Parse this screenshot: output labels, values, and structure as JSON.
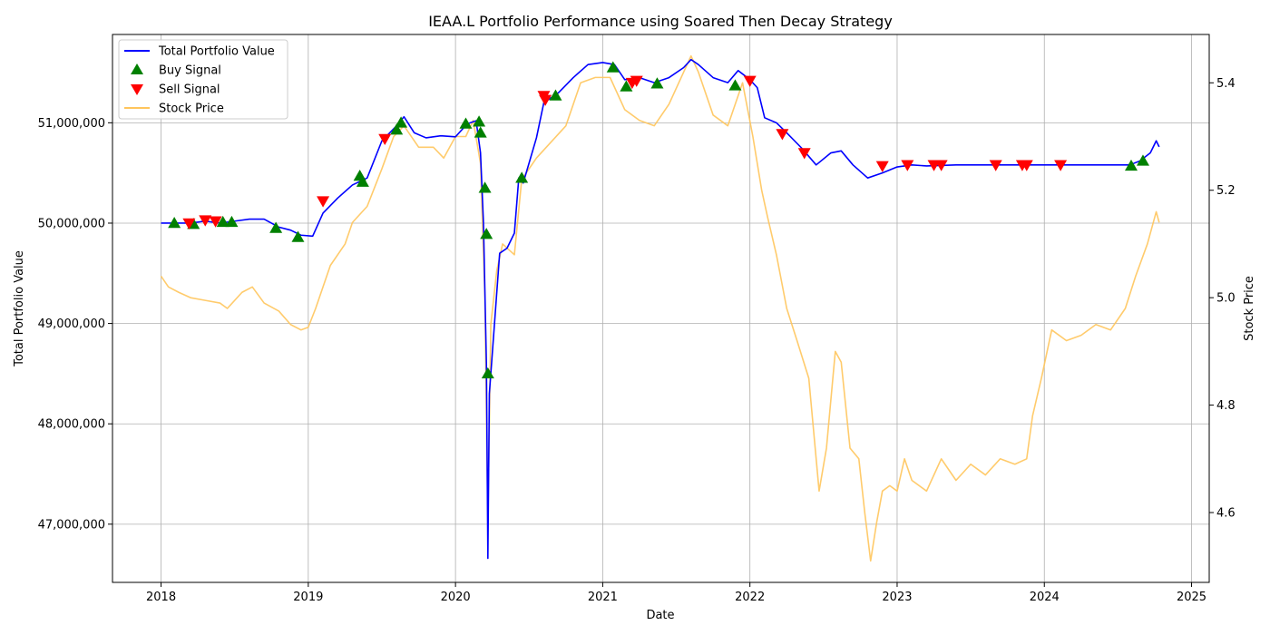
{
  "chart_data": {
    "type": "line",
    "title": "IEAA.L Portfolio Performance using Soared Then Decay Strategy",
    "xlabel": "Date",
    "ylabel": "Total Portfolio Value",
    "ylabel_right": "Stock Price",
    "x_ticks": [
      "2018",
      "2019",
      "2020",
      "2021",
      "2022",
      "2023",
      "2024",
      "2025"
    ],
    "x_range": [
      2017.67,
      2025.12
    ],
    "ylim": [
      46420000,
      51880000
    ],
    "y_ticks": [
      47000000,
      48000000,
      49000000,
      50000000,
      51000000
    ],
    "y_tick_labels": [
      "47,000,000",
      "48,000,000",
      "49,000,000",
      "50,000,000",
      "51,000,000"
    ],
    "ylim_right": [
      4.47,
      5.49
    ],
    "y_ticks_right": [
      4.6,
      4.8,
      5.0,
      5.2,
      5.4
    ],
    "y_tick_labels_right": [
      "4.6",
      "4.8",
      "5.0",
      "5.2",
      "5.4"
    ],
    "grid": true,
    "legend_position": "top-left",
    "legend": [
      {
        "label": "Total Portfolio Value",
        "type": "line",
        "color": "#0000ff"
      },
      {
        "label": "Buy Signal",
        "type": "triangle-up",
        "color": "#008000"
      },
      {
        "label": "Sell Signal",
        "type": "triangle-down",
        "color": "#ff0000"
      },
      {
        "label": "Stock Price",
        "type": "line",
        "color": "#ffc55c"
      }
    ],
    "series": [
      {
        "name": "Total Portfolio Value",
        "axis": "left",
        "color": "#0000ff",
        "points": [
          [
            2018.0,
            50000000
          ],
          [
            2018.1,
            50000000
          ],
          [
            2018.2,
            50000000
          ],
          [
            2018.3,
            50020000
          ],
          [
            2018.4,
            50000000
          ],
          [
            2018.5,
            50020000
          ],
          [
            2018.6,
            50040000
          ],
          [
            2018.7,
            50040000
          ],
          [
            2018.8,
            49960000
          ],
          [
            2018.88,
            49930000
          ],
          [
            2018.95,
            49880000
          ],
          [
            2019.03,
            49870000
          ],
          [
            2019.1,
            50100000
          ],
          [
            2019.2,
            50250000
          ],
          [
            2019.3,
            50380000
          ],
          [
            2019.4,
            50450000
          ],
          [
            2019.5,
            50820000
          ],
          [
            2019.6,
            50970000
          ],
          [
            2019.65,
            51060000
          ],
          [
            2019.72,
            50900000
          ],
          [
            2019.8,
            50850000
          ],
          [
            2019.9,
            50870000
          ],
          [
            2020.0,
            50860000
          ],
          [
            2020.08,
            50990000
          ],
          [
            2020.14,
            51020000
          ],
          [
            2020.17,
            50700000
          ],
          [
            2020.19,
            50000000
          ],
          [
            2020.21,
            48600000
          ],
          [
            2020.22,
            46660000
          ],
          [
            2020.23,
            48300000
          ],
          [
            2020.26,
            48900000
          ],
          [
            2020.3,
            49700000
          ],
          [
            2020.35,
            49750000
          ],
          [
            2020.4,
            49900000
          ],
          [
            2020.43,
            50450000
          ],
          [
            2020.46,
            50400000
          ],
          [
            2020.5,
            50600000
          ],
          [
            2020.55,
            50850000
          ],
          [
            2020.6,
            51200000
          ],
          [
            2020.7,
            51300000
          ],
          [
            2020.8,
            51450000
          ],
          [
            2020.9,
            51580000
          ],
          [
            2021.0,
            51600000
          ],
          [
            2021.08,
            51580000
          ],
          [
            2021.15,
            51430000
          ],
          [
            2021.25,
            51450000
          ],
          [
            2021.35,
            51400000
          ],
          [
            2021.45,
            51450000
          ],
          [
            2021.55,
            51550000
          ],
          [
            2021.6,
            51630000
          ],
          [
            2021.65,
            51580000
          ],
          [
            2021.75,
            51450000
          ],
          [
            2021.85,
            51400000
          ],
          [
            2021.92,
            51520000
          ],
          [
            2022.0,
            51430000
          ],
          [
            2022.05,
            51350000
          ],
          [
            2022.1,
            51050000
          ],
          [
            2022.18,
            51000000
          ],
          [
            2022.25,
            50900000
          ],
          [
            2022.35,
            50750000
          ],
          [
            2022.45,
            50580000
          ],
          [
            2022.55,
            50700000
          ],
          [
            2022.62,
            50720000
          ],
          [
            2022.7,
            50580000
          ],
          [
            2022.8,
            50450000
          ],
          [
            2022.9,
            50500000
          ],
          [
            2023.0,
            50560000
          ],
          [
            2023.1,
            50580000
          ],
          [
            2023.2,
            50570000
          ],
          [
            2023.4,
            50580000
          ],
          [
            2023.6,
            50580000
          ],
          [
            2023.8,
            50580000
          ],
          [
            2024.0,
            50580000
          ],
          [
            2024.2,
            50580000
          ],
          [
            2024.4,
            50580000
          ],
          [
            2024.58,
            50580000
          ],
          [
            2024.65,
            50620000
          ],
          [
            2024.72,
            50700000
          ],
          [
            2024.76,
            50820000
          ],
          [
            2024.78,
            50760000
          ]
        ]
      },
      {
        "name": "Stock Price",
        "axis": "right",
        "color": "#ffc55c",
        "points": [
          [
            2018.0,
            5.04
          ],
          [
            2018.05,
            5.02
          ],
          [
            2018.12,
            5.01
          ],
          [
            2018.2,
            5.0
          ],
          [
            2018.3,
            4.995
          ],
          [
            2018.4,
            4.99
          ],
          [
            2018.45,
            4.98
          ],
          [
            2018.55,
            5.01
          ],
          [
            2018.62,
            5.02
          ],
          [
            2018.7,
            4.99
          ],
          [
            2018.8,
            4.975
          ],
          [
            2018.88,
            4.95
          ],
          [
            2018.95,
            4.94
          ],
          [
            2019.0,
            4.945
          ],
          [
            2019.05,
            4.98
          ],
          [
            2019.15,
            5.06
          ],
          [
            2019.25,
            5.1
          ],
          [
            2019.3,
            5.14
          ],
          [
            2019.4,
            5.17
          ],
          [
            2019.5,
            5.24
          ],
          [
            2019.58,
            5.3
          ],
          [
            2019.65,
            5.32
          ],
          [
            2019.75,
            5.28
          ],
          [
            2019.85,
            5.28
          ],
          [
            2019.92,
            5.26
          ],
          [
            2020.0,
            5.3
          ],
          [
            2020.07,
            5.3
          ],
          [
            2020.12,
            5.33
          ],
          [
            2020.17,
            5.25
          ],
          [
            2020.2,
            5.0
          ],
          [
            2020.22,
            4.58
          ],
          [
            2020.24,
            4.95
          ],
          [
            2020.28,
            5.05
          ],
          [
            2020.32,
            5.1
          ],
          [
            2020.4,
            5.08
          ],
          [
            2020.45,
            5.22
          ],
          [
            2020.55,
            5.26
          ],
          [
            2020.65,
            5.29
          ],
          [
            2020.75,
            5.32
          ],
          [
            2020.85,
            5.4
          ],
          [
            2020.95,
            5.41
          ],
          [
            2021.05,
            5.41
          ],
          [
            2021.15,
            5.35
          ],
          [
            2021.25,
            5.33
          ],
          [
            2021.35,
            5.32
          ],
          [
            2021.45,
            5.36
          ],
          [
            2021.55,
            5.42
          ],
          [
            2021.6,
            5.45
          ],
          [
            2021.65,
            5.42
          ],
          [
            2021.75,
            5.34
          ],
          [
            2021.85,
            5.32
          ],
          [
            2021.95,
            5.4
          ],
          [
            2022.02,
            5.3
          ],
          [
            2022.08,
            5.2
          ],
          [
            2022.12,
            5.15
          ],
          [
            2022.18,
            5.08
          ],
          [
            2022.25,
            4.98
          ],
          [
            2022.32,
            4.92
          ],
          [
            2022.4,
            4.85
          ],
          [
            2022.47,
            4.64
          ],
          [
            2022.52,
            4.72
          ],
          [
            2022.58,
            4.9
          ],
          [
            2022.62,
            4.88
          ],
          [
            2022.68,
            4.72
          ],
          [
            2022.74,
            4.7
          ],
          [
            2022.78,
            4.6
          ],
          [
            2022.82,
            4.51
          ],
          [
            2022.86,
            4.58
          ],
          [
            2022.9,
            4.64
          ],
          [
            2022.95,
            4.65
          ],
          [
            2023.0,
            4.64
          ],
          [
            2023.05,
            4.7
          ],
          [
            2023.1,
            4.66
          ],
          [
            2023.2,
            4.64
          ],
          [
            2023.3,
            4.7
          ],
          [
            2023.4,
            4.66
          ],
          [
            2023.5,
            4.69
          ],
          [
            2023.6,
            4.67
          ],
          [
            2023.7,
            4.7
          ],
          [
            2023.8,
            4.69
          ],
          [
            2023.88,
            4.7
          ],
          [
            2023.92,
            4.78
          ],
          [
            2023.98,
            4.85
          ],
          [
            2024.05,
            4.94
          ],
          [
            2024.15,
            4.92
          ],
          [
            2024.25,
            4.93
          ],
          [
            2024.35,
            4.95
          ],
          [
            2024.45,
            4.94
          ],
          [
            2024.55,
            4.98
          ],
          [
            2024.62,
            5.04
          ],
          [
            2024.7,
            5.1
          ],
          [
            2024.76,
            5.16
          ],
          [
            2024.78,
            5.14
          ]
        ]
      }
    ],
    "buy_signals": [
      [
        2018.09,
        50000000
      ],
      [
        2018.22,
        49990000
      ],
      [
        2018.42,
        50010000
      ],
      [
        2018.48,
        50010000
      ],
      [
        2018.78,
        49950000
      ],
      [
        2018.93,
        49860000
      ],
      [
        2019.35,
        50470000
      ],
      [
        2019.37,
        50410000
      ],
      [
        2019.6,
        50930000
      ],
      [
        2019.63,
        51000000
      ],
      [
        2020.07,
        50990000
      ],
      [
        2020.16,
        51010000
      ],
      [
        2020.17,
        50900000
      ],
      [
        2020.2,
        50350000
      ],
      [
        2020.21,
        49890000
      ],
      [
        2020.22,
        48500000
      ],
      [
        2020.45,
        50450000
      ],
      [
        2020.68,
        51270000
      ],
      [
        2021.07,
        51550000
      ],
      [
        2021.16,
        51360000
      ],
      [
        2021.37,
        51390000
      ],
      [
        2021.9,
        51370000
      ],
      [
        2024.59,
        50570000
      ],
      [
        2024.67,
        50620000
      ]
    ],
    "sell_signals": [
      [
        2018.19,
        50000000
      ],
      [
        2018.3,
        50030000
      ],
      [
        2018.37,
        50020000
      ],
      [
        2019.1,
        50220000
      ],
      [
        2019.52,
        50840000
      ],
      [
        2020.6,
        51270000
      ],
      [
        2020.61,
        51230000
      ],
      [
        2021.2,
        51400000
      ],
      [
        2021.23,
        51420000
      ],
      [
        2022.0,
        51420000
      ],
      [
        2022.22,
        50890000
      ],
      [
        2022.37,
        50700000
      ],
      [
        2022.9,
        50570000
      ],
      [
        2023.07,
        50580000
      ],
      [
        2023.25,
        50580000
      ],
      [
        2023.3,
        50580000
      ],
      [
        2023.67,
        50580000
      ],
      [
        2023.85,
        50580000
      ],
      [
        2023.88,
        50580000
      ],
      [
        2024.11,
        50580000
      ]
    ]
  }
}
